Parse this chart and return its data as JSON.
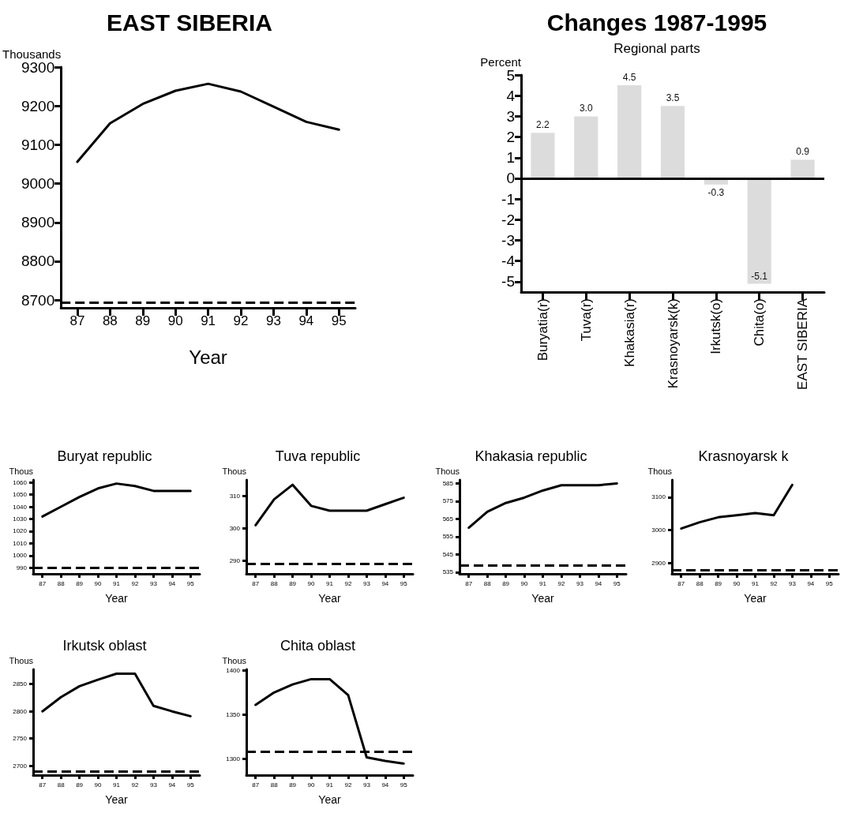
{
  "chart_data": [
    {
      "type": "line",
      "title": "EAST SIBERIA",
      "xlabel": "Year",
      "ylabel": "Thousands",
      "categories": [
        "87",
        "88",
        "89",
        "90",
        "91",
        "92",
        "93",
        "94",
        "95"
      ],
      "series": [
        {
          "color": "#000000",
          "values": [
            9056,
            9155,
            9205,
            9239,
            9257,
            9237,
            9198,
            9159,
            9139
          ]
        }
      ],
      "ylim": [
        8680,
        9300
      ],
      "yticks": [
        8700,
        8800,
        8900,
        9000,
        9100,
        9200,
        9300
      ],
      "grid": false,
      "marker": "none",
      "line_style": "solid",
      "ref_lines": [
        {
          "axis": "y",
          "value": 8694,
          "line_style": "dashed",
          "color": "#000000"
        }
      ]
    },
    {
      "type": "bar",
      "title": "Changes 1987-1995",
      "subtitle": "Regional parts",
      "ylabel": "Percent",
      "categories": [
        "Buryatia(r)",
        "Tuva(r)",
        "Khakasia(r)",
        "Krasnoyarsk(k)",
        "Irkutsk(o)",
        "Chita(o)",
        "EAST SIBERIA"
      ],
      "series": [
        {
          "color": "#dcdcdc",
          "values": [
            2.2,
            3.0,
            4.5,
            3.5,
            -0.3,
            -5.1,
            0.9
          ],
          "value_labels": [
            "2.2",
            "3.0",
            "4.5",
            "3.5",
            "-0.3",
            "-5.1",
            "0.9"
          ]
        }
      ],
      "ylim": [
        -5.5,
        5
      ],
      "yticks": [
        -5,
        -4,
        -3,
        -2,
        -1,
        0,
        1,
        2,
        3,
        4,
        5
      ],
      "grid": false,
      "ref_lines": [
        {
          "axis": "y",
          "value": 0,
          "line_style": "solid",
          "color": "#000000"
        }
      ]
    },
    {
      "type": "line",
      "title": "Buryat republic",
      "xlabel": "Year",
      "ylabel": "Thous",
      "categories": [
        "87",
        "88",
        "89",
        "90",
        "91",
        "92",
        "93",
        "94",
        "95"
      ],
      "series": [
        {
          "color": "#000000",
          "values": [
            1032,
            1040,
            1048,
            1055,
            1059,
            1057,
            1053,
            1053,
            1053
          ]
        }
      ],
      "ylim": [
        985,
        1062
      ],
      "yticks": [
        990,
        1000,
        1010,
        1020,
        1030,
        1040,
        1050,
        1060
      ],
      "grid": false,
      "marker": "none",
      "line_style": "solid",
      "ref_lines": [
        {
          "axis": "y",
          "value": 990,
          "line_style": "dashed",
          "color": "#000000"
        }
      ]
    },
    {
      "type": "line",
      "title": "Tuva republic",
      "xlabel": "Year",
      "ylabel": "Thous",
      "categories": [
        "87",
        "88",
        "89",
        "90",
        "91",
        "92",
        "93",
        "94",
        "95"
      ],
      "series": [
        {
          "color": "#000000",
          "values": [
            301,
            309,
            313.5,
            307,
            305.5,
            305.5,
            305.5,
            307.5,
            309.5
          ]
        }
      ],
      "ylim": [
        286,
        315
      ],
      "yticks": [
        290,
        300,
        310
      ],
      "grid": false,
      "marker": "none",
      "line_style": "solid",
      "ref_lines": [
        {
          "axis": "y",
          "value": 289,
          "line_style": "dashed",
          "color": "#000000"
        }
      ]
    },
    {
      "type": "line",
      "title": "Khakasia republic",
      "xlabel": "Year",
      "ylabel": "Thous",
      "categories": [
        "87",
        "88",
        "89",
        "90",
        "91",
        "92",
        "93",
        "94",
        "95"
      ],
      "series": [
        {
          "color": "#000000",
          "values": [
            560,
            569,
            574,
            577,
            581,
            584,
            584,
            584,
            585
          ]
        }
      ],
      "ylim": [
        534,
        587
      ],
      "yticks": [
        535,
        545,
        555,
        565,
        575,
        585
      ],
      "grid": false,
      "marker": "none",
      "line_style": "solid",
      "ref_lines": [
        {
          "axis": "y",
          "value": 539,
          "line_style": "dashed",
          "color": "#000000"
        }
      ]
    },
    {
      "type": "line",
      "title": "Krasnoyarsk k",
      "xlabel": "Year",
      "ylabel": "Thous",
      "categories": [
        "87",
        "88",
        "89",
        "90",
        "91",
        "92",
        "93",
        "94",
        "95"
      ],
      "series": [
        {
          "color": "#000000",
          "values": [
            3005,
            3024,
            3039,
            3045,
            3052,
            3045,
            3137,
            null,
            null
          ]
        }
      ],
      "ylim": [
        2868,
        3152
      ],
      "yticks": [
        2900,
        3000,
        3100
      ],
      "grid": false,
      "marker": "none",
      "line_style": "solid",
      "ref_lines": [
        {
          "axis": "y",
          "value": 2880,
          "line_style": "dashed",
          "color": "#000000"
        }
      ]
    },
    {
      "type": "line",
      "title": "Irkutsk oblast",
      "xlabel": "Year",
      "ylabel": "Thous",
      "categories": [
        "87",
        "88",
        "89",
        "90",
        "91",
        "92",
        "93",
        "94",
        "95"
      ],
      "series": [
        {
          "color": "#000000",
          "values": [
            2800,
            2826,
            2846,
            2858,
            2869,
            2869,
            2810,
            2800,
            2791
          ]
        }
      ],
      "ylim": [
        2683,
        2877
      ],
      "yticks": [
        2700,
        2750,
        2800,
        2850
      ],
      "grid": false,
      "marker": "none",
      "line_style": "solid",
      "ref_lines": [
        {
          "axis": "y",
          "value": 2690,
          "line_style": "dashed",
          "color": "#000000"
        }
      ]
    },
    {
      "type": "line",
      "title": "Chita oblast",
      "xlabel": "Year",
      "ylabel": "Thous",
      "categories": [
        "87",
        "88",
        "89",
        "90",
        "91",
        "92",
        "93",
        "94",
        "95"
      ],
      "series": [
        {
          "color": "#000000",
          "values": [
            1361,
            1375,
            1384,
            1390,
            1390,
            1372,
            1302,
            1298,
            1295
          ]
        }
      ],
      "ylim": [
        1282,
        1401
      ],
      "yticks": [
        1300,
        1350,
        1400
      ],
      "grid": false,
      "marker": "none",
      "line_style": "solid",
      "ref_lines": [
        {
          "axis": "y",
          "value": 1308,
          "line_style": "dashed",
          "color": "#000000"
        }
      ]
    }
  ]
}
